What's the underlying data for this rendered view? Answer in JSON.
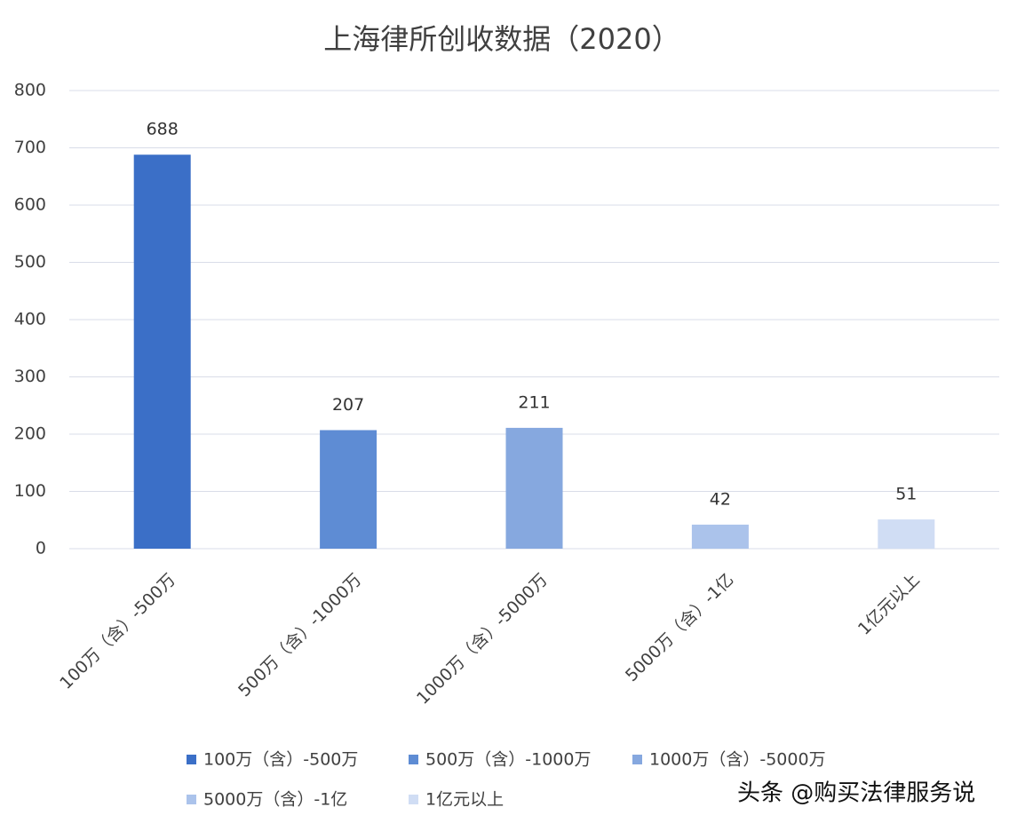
{
  "chart_data": {
    "type": "bar",
    "title": "上海律所创收数据（2020）",
    "categories": [
      "100万（含）-500万",
      "500万（含）-1000万",
      "1000万（含）-5000万",
      "5000万（含）-1亿",
      "1亿元以上"
    ],
    "values": [
      688,
      207,
      211,
      42,
      51
    ],
    "colors": [
      "#3b6fc7",
      "#5e8cd4",
      "#86a8df",
      "#abc3eb",
      "#d0ddf4"
    ],
    "ylim": [
      0,
      800
    ],
    "yticks": [
      0,
      100,
      200,
      300,
      400,
      500,
      600,
      700,
      800
    ],
    "grid": true,
    "legend": "bottom",
    "watermark": "头条 @购买法律服务说"
  }
}
